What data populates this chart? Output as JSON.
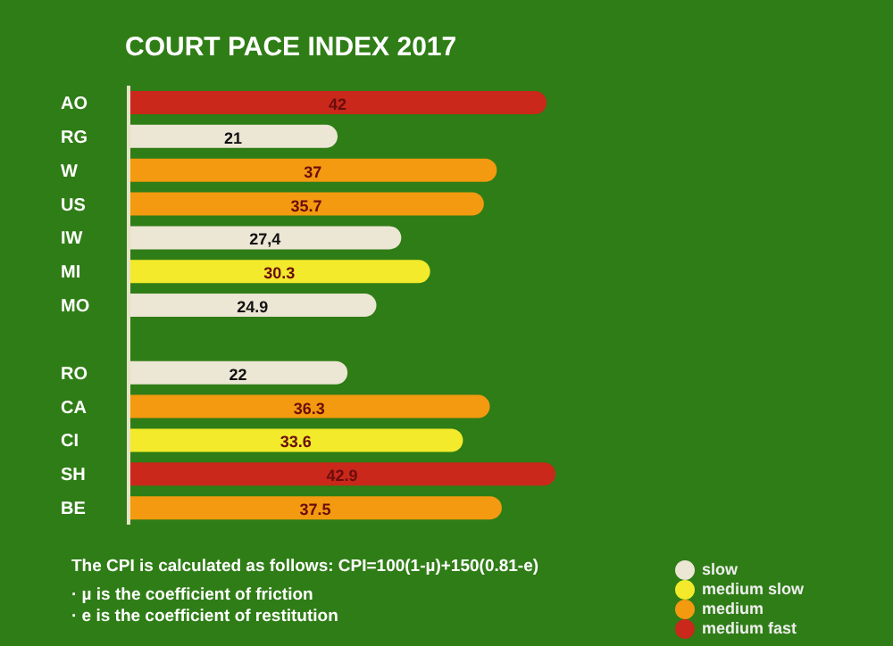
{
  "chart_data": {
    "type": "bar",
    "title": "COURT PACE INDEX 2017",
    "orientation": "horizontal",
    "stacked": true,
    "categories": [
      "AO",
      "RG",
      "W",
      "US",
      "IW",
      "MI",
      "MO",
      null,
      "RO",
      "CA",
      "CI",
      "SH",
      "BE"
    ],
    "series": [
      {
        "name": "slow",
        "color": "#ece6d4",
        "values": [
          null,
          21,
          null,
          null,
          27.4,
          null,
          24.9,
          null,
          22,
          null,
          null,
          null,
          null
        ],
        "value_labels": [
          null,
          "21",
          null,
          null,
          "27,4",
          null,
          "24.9",
          null,
          "22",
          null,
          null,
          null,
          null
        ]
      },
      {
        "name": "medium slow",
        "color": "#f2ea2a",
        "values": [
          null,
          null,
          null,
          null,
          null,
          30.3,
          null,
          null,
          null,
          null,
          33.6,
          null,
          null
        ],
        "value_labels": [
          null,
          null,
          null,
          null,
          null,
          "30.3",
          null,
          null,
          null,
          null,
          "33.6",
          null,
          null
        ]
      },
      {
        "name": "medium",
        "color": "#f39a10",
        "values": [
          null,
          null,
          37,
          35.7,
          null,
          null,
          null,
          null,
          null,
          36.3,
          null,
          null,
          37.5
        ],
        "value_labels": [
          null,
          null,
          "37",
          "35.7",
          null,
          null,
          null,
          null,
          null,
          "36.3",
          null,
          null,
          "37.5"
        ]
      },
      {
        "name": "medium fast",
        "color": "#c9281b",
        "values": [
          42,
          null,
          null,
          null,
          null,
          null,
          null,
          null,
          null,
          null,
          null,
          42.9,
          null
        ],
        "value_labels": [
          "42",
          null,
          null,
          null,
          null,
          null,
          null,
          null,
          null,
          null,
          null,
          "42.9",
          null
        ]
      }
    ],
    "tick_labels": "y",
    "legend": "bottom right",
    "annotations": [
      "The CPI is calculated as follows: CPI=100(1-µ)+150(0.81-e)",
      "· µ is the coefficient of friction",
      "· e is the coefficient of restitution"
    ]
  }
}
